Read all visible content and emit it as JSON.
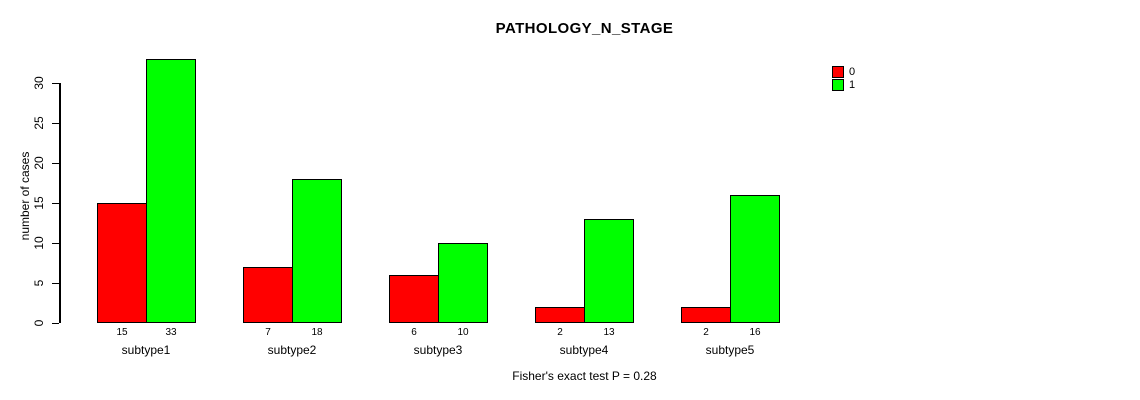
{
  "title": "PATHOLOGY_N_STAGE",
  "footer": "Fisher's exact test P = 0.28",
  "colors": {
    "series0": "#FF0000",
    "series1": "#00FF00",
    "axis": "#000000",
    "background": "#FFFFFF"
  },
  "chart_data": {
    "type": "bar",
    "title": "PATHOLOGY_N_STAGE",
    "xlabel": "",
    "ylabel": "number of cases",
    "categories": [
      "subtype1",
      "subtype2",
      "subtype3",
      "subtype4",
      "subtype5"
    ],
    "series": [
      {
        "name": "0",
        "color": "#FF0000",
        "values": [
          15,
          7,
          6,
          2,
          2
        ]
      },
      {
        "name": "1",
        "color": "#00FF00",
        "values": [
          33,
          18,
          10,
          13,
          16
        ]
      }
    ],
    "bar_count_labels": [
      [
        "15",
        "33"
      ],
      [
        "7",
        "18"
      ],
      [
        "6",
        "10"
      ],
      [
        "2",
        "13"
      ],
      [
        "2",
        "16"
      ]
    ],
    "ylim": [
      0,
      30
    ],
    "yticks": [
      "0",
      "5",
      "10",
      "15",
      "20",
      "25",
      "30"
    ],
    "grid": false,
    "legend_position": "top-right",
    "annotation": "Fisher's exact test P = 0.28"
  }
}
